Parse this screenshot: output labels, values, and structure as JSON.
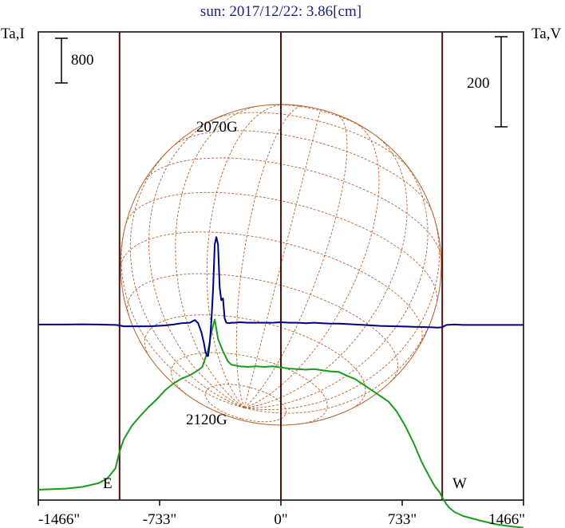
{
  "chart_data": {
    "type": "line",
    "title": "sun: 2017/12/22: 3.86[cm]",
    "y_left_label": "Ta,I",
    "y_right_label": "Ta,V",
    "scale_left_label": "800",
    "scale_right_label": "200",
    "limb_labels": {
      "east": "E",
      "west": "W"
    },
    "x_range_arcsec": [
      -1466,
      1466
    ],
    "x_ticks": [
      {
        "value": -1466,
        "label": "-1466\""
      },
      {
        "value": -733,
        "label": "-733\""
      },
      {
        "value": 0,
        "label": "0\""
      },
      {
        "value": 733,
        "label": "733\""
      },
      {
        "value": 1466,
        "label": "1466\""
      }
    ],
    "vertical_markers_arcsec": [
      -975,
      0,
      975
    ],
    "disk_radius_arcsec": 975,
    "annotations": [
      {
        "text": "2070G",
        "x": -425,
        "series": "V"
      },
      {
        "text": "2120G",
        "x": -425,
        "series": "V"
      }
    ],
    "series": [
      {
        "color": "#1a9c1a",
        "x": [
          -1466,
          -1300,
          -1200,
          -1100,
          -1050,
          -1000,
          -975,
          -950,
          -900,
          -850,
          -800,
          -750,
          -700,
          -650,
          -600,
          -550,
          -500,
          -475,
          -440,
          -420,
          -400,
          -380,
          -350,
          -320,
          -300,
          -250,
          -200,
          -150,
          -100,
          -50,
          0,
          50,
          100,
          150,
          200,
          250,
          300,
          350,
          400,
          450,
          500,
          550,
          600,
          650,
          700,
          750,
          800,
          850,
          900,
          930,
          960,
          975,
          1000,
          1020,
          1050,
          1100,
          1200,
          1300,
          1400,
          1466
        ],
        "values": [
          0,
          20,
          50,
          120,
          200,
          380,
          680,
          900,
          1150,
          1320,
          1480,
          1620,
          1780,
          1900,
          1990,
          2050,
          2140,
          2200,
          2500,
          2820,
          3050,
          2700,
          2480,
          2300,
          2240,
          2210,
          2200,
          2210,
          2200,
          2210,
          2190,
          2170,
          2160,
          2150,
          2160,
          2140,
          2120,
          2110,
          2040,
          1980,
          1880,
          1780,
          1680,
          1580,
          1400,
          1150,
          850,
          500,
          220,
          60,
          -50,
          -140,
          -260,
          -330,
          -400,
          -470,
          -550,
          -620,
          -660,
          -680
        ]
      },
      {
        "color": "#000080",
        "x": [
          -1466,
          -1300,
          -1200,
          -1100,
          -1000,
          -975,
          -950,
          -900,
          -850,
          -800,
          -750,
          -700,
          -650,
          -600,
          -550,
          -520,
          -500,
          -480,
          -465,
          -455,
          -445,
          -440,
          -430,
          -420,
          -410,
          -400,
          -390,
          -380,
          -370,
          -360,
          -350,
          -340,
          -330,
          -310,
          -300,
          -280,
          -250,
          -200,
          -150,
          -100,
          -50,
          0,
          50,
          100,
          150,
          200,
          250,
          300,
          350,
          400,
          450,
          500,
          550,
          600,
          650,
          700,
          750,
          800,
          850,
          900,
          950,
          975,
          1000,
          1050,
          1100,
          1200,
          1300,
          1400,
          1466
        ],
        "values": [
          10,
          10,
          12,
          10,
          5,
          0,
          -10,
          -10,
          -10,
          -10,
          -5,
          0,
          10,
          25,
          30,
          60,
          25,
          -80,
          -200,
          -300,
          -340,
          -340,
          -200,
          50,
          400,
          900,
          980,
          900,
          420,
          280,
          300,
          80,
          30,
          25,
          30,
          30,
          35,
          30,
          30,
          30,
          30,
          35,
          30,
          30,
          25,
          30,
          25,
          20,
          20,
          15,
          10,
          5,
          0,
          -5,
          -8,
          -10,
          -12,
          -15,
          -18,
          -20,
          -25,
          -20,
          5,
          10,
          5,
          5,
          5,
          5,
          5
        ]
      }
    ]
  }
}
